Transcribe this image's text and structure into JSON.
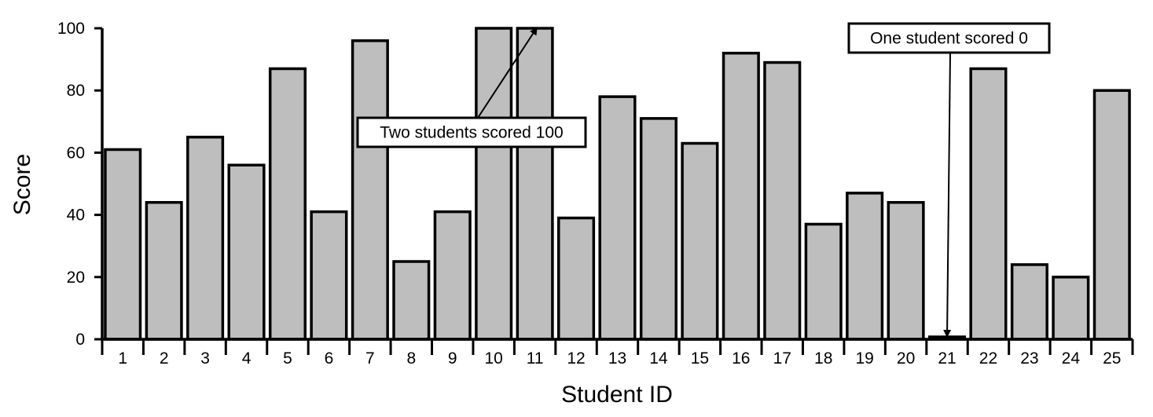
{
  "chart_data": {
    "type": "bar",
    "title": "",
    "xlabel": "Student ID",
    "ylabel": "Score",
    "categories": [
      "1",
      "2",
      "3",
      "4",
      "5",
      "6",
      "7",
      "8",
      "9",
      "10",
      "11",
      "12",
      "13",
      "14",
      "15",
      "16",
      "17",
      "18",
      "19",
      "20",
      "21",
      "22",
      "23",
      "24",
      "25"
    ],
    "values": [
      61,
      44,
      65,
      56,
      87,
      41,
      96,
      25,
      41,
      100,
      100,
      39,
      78,
      71,
      63,
      92,
      89,
      37,
      47,
      44,
      0,
      87,
      24,
      20,
      80
    ],
    "ylim": [
      0,
      100
    ],
    "yticks": [
      0,
      20,
      40,
      60,
      80,
      100
    ],
    "grid": false,
    "bar_color": "#bebebe",
    "edge_color": "#000000",
    "annotations": [
      {
        "text": "Two students scored 100",
        "target_category": "11",
        "target_value": 100
      },
      {
        "text": "One student scored 0",
        "target_category": "21",
        "target_value": 0
      }
    ]
  }
}
